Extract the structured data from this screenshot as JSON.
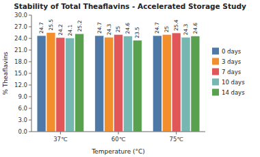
{
  "chart_data": {
    "type": "bar",
    "title": "Stability of Total Theaflavins - Accelerated Storage Study",
    "x_label": "Temperature (°C)",
    "y_label": "% Theaflavins",
    "categories": [
      "37℃",
      "60℃",
      "75℃"
    ],
    "series": [
      {
        "name": "0 days",
        "values": [
          24.7,
          24.7,
          24.7
        ]
      },
      {
        "name": "3 days",
        "values": [
          25.5,
          24.3,
          25.0
        ]
      },
      {
        "name": "7 days",
        "values": [
          24.2,
          25.0,
          25.4
        ]
      },
      {
        "name": "10 days",
        "values": [
          24.1,
          24.6,
          24.3
        ]
      },
      {
        "name": "14 days",
        "values": [
          25.2,
          23.5,
          24.6
        ]
      }
    ],
    "ylim": [
      0.0,
      30.0
    ],
    "yticks": [
      {
        "value": 0.0,
        "label": "0.0"
      },
      {
        "value": 3.0,
        "label": "3.0"
      },
      {
        "value": 6.0,
        "label": "6.0"
      },
      {
        "value": 9.0,
        "label": "9.0"
      },
      {
        "value": 12.0,
        "label": "12.0"
      },
      {
        "value": 15.0,
        "label": "15.0"
      },
      {
        "value": 18.0,
        "label": "18.0"
      },
      {
        "value": 21.0,
        "label": "21.0"
      },
      {
        "value": 24.0,
        "label": "24.0"
      },
      {
        "value": 27.0,
        "label": "27.0"
      },
      {
        "value": 30.0,
        "label": "30.0"
      }
    ],
    "data_labels": true,
    "grid": false,
    "legend": "right"
  }
}
